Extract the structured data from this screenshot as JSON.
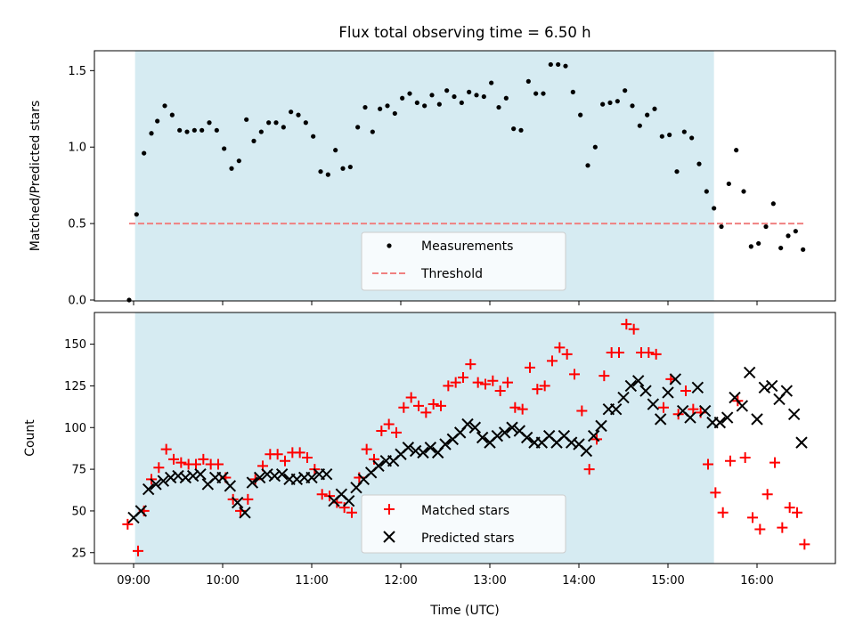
{
  "chart_data": [
    {
      "type": "scatter",
      "title": "Flux total observing time = 6.50 h",
      "xlabel": "",
      "ylabel": "Matched/Predicted stars",
      "ylim": [
        0.0,
        1.63
      ],
      "yticks": [
        "0.0",
        "0.5",
        "1.0",
        "1.5"
      ],
      "shaded_span": {
        "start": "09:01",
        "end": "15:31"
      },
      "threshold": {
        "name": "Threshold",
        "value": 0.5,
        "from": "08:57",
        "to": "16:33",
        "color": "#f08080"
      },
      "legend_position": "lower center",
      "series": [
        {
          "name": "Measurements",
          "marker": "dot",
          "color": "#000000",
          "x": [
            "08:57",
            "09:02",
            "09:07",
            "09:12",
            "09:16",
            "09:21",
            "09:26",
            "09:31",
            "09:36",
            "09:41",
            "09:46",
            "09:51",
            "09:56",
            "10:01",
            "10:06",
            "10:11",
            "10:16",
            "10:21",
            "10:26",
            "10:31",
            "10:36",
            "10:41",
            "10:46",
            "10:51",
            "10:56",
            "11:01",
            "11:06",
            "11:11",
            "11:16",
            "11:21",
            "11:26",
            "11:31",
            "11:36",
            "11:41",
            "11:46",
            "11:51",
            "11:56",
            "12:01",
            "12:06",
            "12:11",
            "12:16",
            "12:21",
            "12:26",
            "12:31",
            "12:36",
            "12:41",
            "12:46",
            "12:51",
            "12:56",
            "13:01",
            "13:06",
            "13:11",
            "13:16",
            "13:21",
            "13:26",
            "13:31",
            "13:36",
            "13:41",
            "13:46",
            "13:51",
            "13:56",
            "14:01",
            "14:06",
            "14:11",
            "14:16",
            "14:21",
            "14:26",
            "14:31",
            "14:36",
            "14:41",
            "14:46",
            "14:51",
            "14:56",
            "15:01",
            "15:06",
            "15:11",
            "15:16",
            "15:21",
            "15:26",
            "15:31",
            "15:36",
            "15:41",
            "15:46",
            "15:51",
            "15:56",
            "16:01",
            "16:06",
            "16:11",
            "16:16",
            "16:21",
            "16:26",
            "16:31"
          ],
          "y": [
            0.0,
            0.56,
            0.96,
            1.09,
            1.17,
            1.27,
            1.21,
            1.11,
            1.1,
            1.11,
            1.11,
            1.16,
            1.11,
            0.99,
            0.86,
            0.91,
            1.18,
            1.04,
            1.1,
            1.16,
            1.16,
            1.13,
            1.23,
            1.21,
            1.16,
            1.07,
            0.84,
            0.82,
            0.98,
            0.86,
            0.87,
            1.13,
            1.26,
            1.1,
            1.25,
            1.27,
            1.22,
            1.32,
            1.35,
            1.29,
            1.27,
            1.34,
            1.28,
            1.37,
            1.33,
            1.29,
            1.36,
            1.34,
            1.33,
            1.42,
            1.26,
            1.32,
            1.12,
            1.11,
            1.43,
            1.35,
            1.35,
            1.54,
            1.54,
            1.53,
            1.36,
            1.21,
            0.88,
            1.0,
            1.28,
            1.29,
            1.3,
            1.37,
            1.27,
            1.14,
            1.21,
            1.25,
            1.07,
            1.08,
            0.84,
            1.1,
            1.06,
            0.89,
            0.71,
            0.6,
            0.48,
            0.76,
            0.98,
            0.71,
            0.35,
            0.37,
            0.48,
            0.63,
            0.34,
            0.42,
            0.45,
            0.33
          ]
        }
      ]
    },
    {
      "type": "scatter",
      "title": "",
      "xlabel": "Time (UTC)",
      "ylabel": "Count",
      "ylim": [
        19,
        169
      ],
      "yticks": [
        "25",
        "50",
        "75",
        "100",
        "125",
        "150"
      ],
      "xticks": [
        "09:00",
        "10:00",
        "11:00",
        "12:00",
        "13:00",
        "14:00",
        "15:00",
        "16:00"
      ],
      "shaded_span": {
        "start": "09:01",
        "end": "15:31"
      },
      "legend_position": "lower center",
      "series": [
        {
          "name": "Matched stars",
          "marker": "plus",
          "color": "#ff0000",
          "x": [
            "08:56",
            "09:03",
            "09:07",
            "09:12",
            "09:17",
            "09:22",
            "09:27",
            "09:32",
            "09:37",
            "09:42",
            "09:47",
            "09:52",
            "09:57",
            "10:02",
            "10:07",
            "10:12",
            "10:17",
            "10:22",
            "10:27",
            "10:32",
            "10:37",
            "10:42",
            "10:47",
            "10:52",
            "10:57",
            "11:02",
            "11:07",
            "11:12",
            "11:17",
            "11:22",
            "11:27",
            "11:32",
            "11:37",
            "11:42",
            "11:47",
            "11:52",
            "11:57",
            "12:02",
            "12:07",
            "12:12",
            "12:17",
            "12:22",
            "12:27",
            "12:32",
            "12:37",
            "12:42",
            "12:47",
            "12:52",
            "12:57",
            "13:02",
            "13:07",
            "13:12",
            "13:17",
            "13:22",
            "13:27",
            "13:32",
            "13:37",
            "13:42",
            "13:47",
            "13:52",
            "13:57",
            "14:02",
            "14:07",
            "14:12",
            "14:17",
            "14:22",
            "14:27",
            "14:32",
            "14:37",
            "14:42",
            "14:47",
            "14:52",
            "14:57",
            "15:02",
            "15:07",
            "15:12",
            "15:17",
            "15:22",
            "15:27",
            "15:32",
            "15:37",
            "15:42",
            "15:47",
            "15:52",
            "15:57",
            "16:02",
            "16:07",
            "16:12",
            "16:17",
            "16:22",
            "16:27",
            "16:32"
          ],
          "y": [
            42,
            26,
            50,
            69,
            76,
            87,
            81,
            79,
            78,
            78,
            81,
            78,
            78,
            70,
            57,
            50,
            57,
            69,
            77,
            84,
            84,
            80,
            85,
            85,
            82,
            75,
            60,
            59,
            55,
            52,
            49,
            70,
            87,
            81,
            98,
            102,
            97,
            112,
            118,
            113,
            109,
            114,
            113,
            125,
            127,
            130,
            138,
            127,
            126,
            128,
            122,
            127,
            112,
            111,
            136,
            123,
            125,
            140,
            148,
            144,
            132,
            110,
            75,
            93,
            131,
            145,
            145,
            162,
            159,
            145,
            145,
            144,
            112,
            129,
            108,
            122,
            111,
            109,
            78,
            61,
            49,
            80,
            116,
            82,
            46,
            39,
            60,
            79,
            40,
            52,
            49,
            30
          ]
        },
        {
          "name": "Predicted stars",
          "marker": "x",
          "color": "#000000",
          "x": [
            "09:00",
            "09:05",
            "09:10",
            "09:15",
            "09:20",
            "09:25",
            "09:30",
            "09:35",
            "09:40",
            "09:45",
            "09:50",
            "09:55",
            "10:00",
            "10:05",
            "10:10",
            "10:15",
            "10:20",
            "10:25",
            "10:30",
            "10:35",
            "10:40",
            "10:45",
            "10:50",
            "10:55",
            "11:00",
            "11:05",
            "11:10",
            "11:15",
            "11:20",
            "11:25",
            "11:30",
            "11:35",
            "11:40",
            "11:45",
            "11:50",
            "11:55",
            "12:00",
            "12:05",
            "12:10",
            "12:15",
            "12:20",
            "12:25",
            "12:30",
            "12:35",
            "12:40",
            "12:45",
            "12:50",
            "12:55",
            "13:00",
            "13:05",
            "13:10",
            "13:15",
            "13:20",
            "13:25",
            "13:30",
            "13:35",
            "13:40",
            "13:45",
            "13:50",
            "13:55",
            "14:00",
            "14:05",
            "14:10",
            "14:15",
            "14:20",
            "14:25",
            "14:30",
            "14:35",
            "14:40",
            "14:45",
            "14:50",
            "14:55",
            "15:00",
            "15:05",
            "15:10",
            "15:15",
            "15:20",
            "15:25",
            "15:30",
            "15:35",
            "15:40",
            "15:45",
            "15:50",
            "15:55",
            "16:00",
            "16:05",
            "16:10",
            "16:15",
            "16:20",
            "16:25",
            "16:30"
          ],
          "y": [
            46,
            50,
            63,
            66,
            68,
            70,
            71,
            70,
            71,
            72,
            66,
            70,
            70,
            65,
            55,
            49,
            67,
            70,
            72,
            71,
            72,
            69,
            69,
            70,
            70,
            72,
            72,
            56,
            60,
            56,
            64,
            69,
            73,
            77,
            80,
            80,
            84,
            88,
            86,
            85,
            88,
            85,
            90,
            93,
            97,
            102,
            100,
            94,
            91,
            95,
            97,
            100,
            98,
            94,
            91,
            91,
            95,
            91,
            95,
            91,
            90,
            86,
            95,
            101,
            111,
            111,
            118,
            125,
            128,
            122,
            114,
            105,
            121,
            129,
            110,
            106,
            124,
            110,
            103,
            103,
            106,
            118,
            113,
            133,
            105,
            124,
            125,
            117,
            122,
            108,
            91
          ]
        }
      ]
    }
  ]
}
